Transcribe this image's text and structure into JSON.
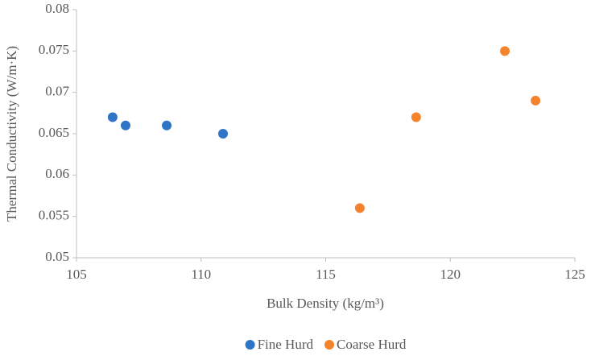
{
  "chart_data": {
    "type": "scatter",
    "x_label": "Bulk Density (kg/m³)",
    "y_label": "Thermal Conductivity (W/m·K)",
    "xlim": [
      105,
      125
    ],
    "xticks": [
      105,
      110,
      115,
      120,
      125
    ],
    "ylim": [
      0.05,
      0.08
    ],
    "yticks": [
      0.05,
      0.055,
      0.06,
      0.065,
      0.07,
      0.075,
      0.08
    ],
    "grid": false,
    "legend": "bottom",
    "series": [
      {
        "name": "Fine Hurd",
        "color": "#2e75c7",
        "x": [
          106.45,
          106.97,
          108.62,
          110.88
        ],
        "values": [
          0.067,
          0.066,
          0.066,
          0.065
        ]
      },
      {
        "name": "Coarse Hurd",
        "color": "#f4832d",
        "x": [
          116.37,
          118.63,
          122.19,
          123.42
        ],
        "values": [
          0.056,
          0.067,
          0.075,
          0.069
        ]
      }
    ]
  }
}
